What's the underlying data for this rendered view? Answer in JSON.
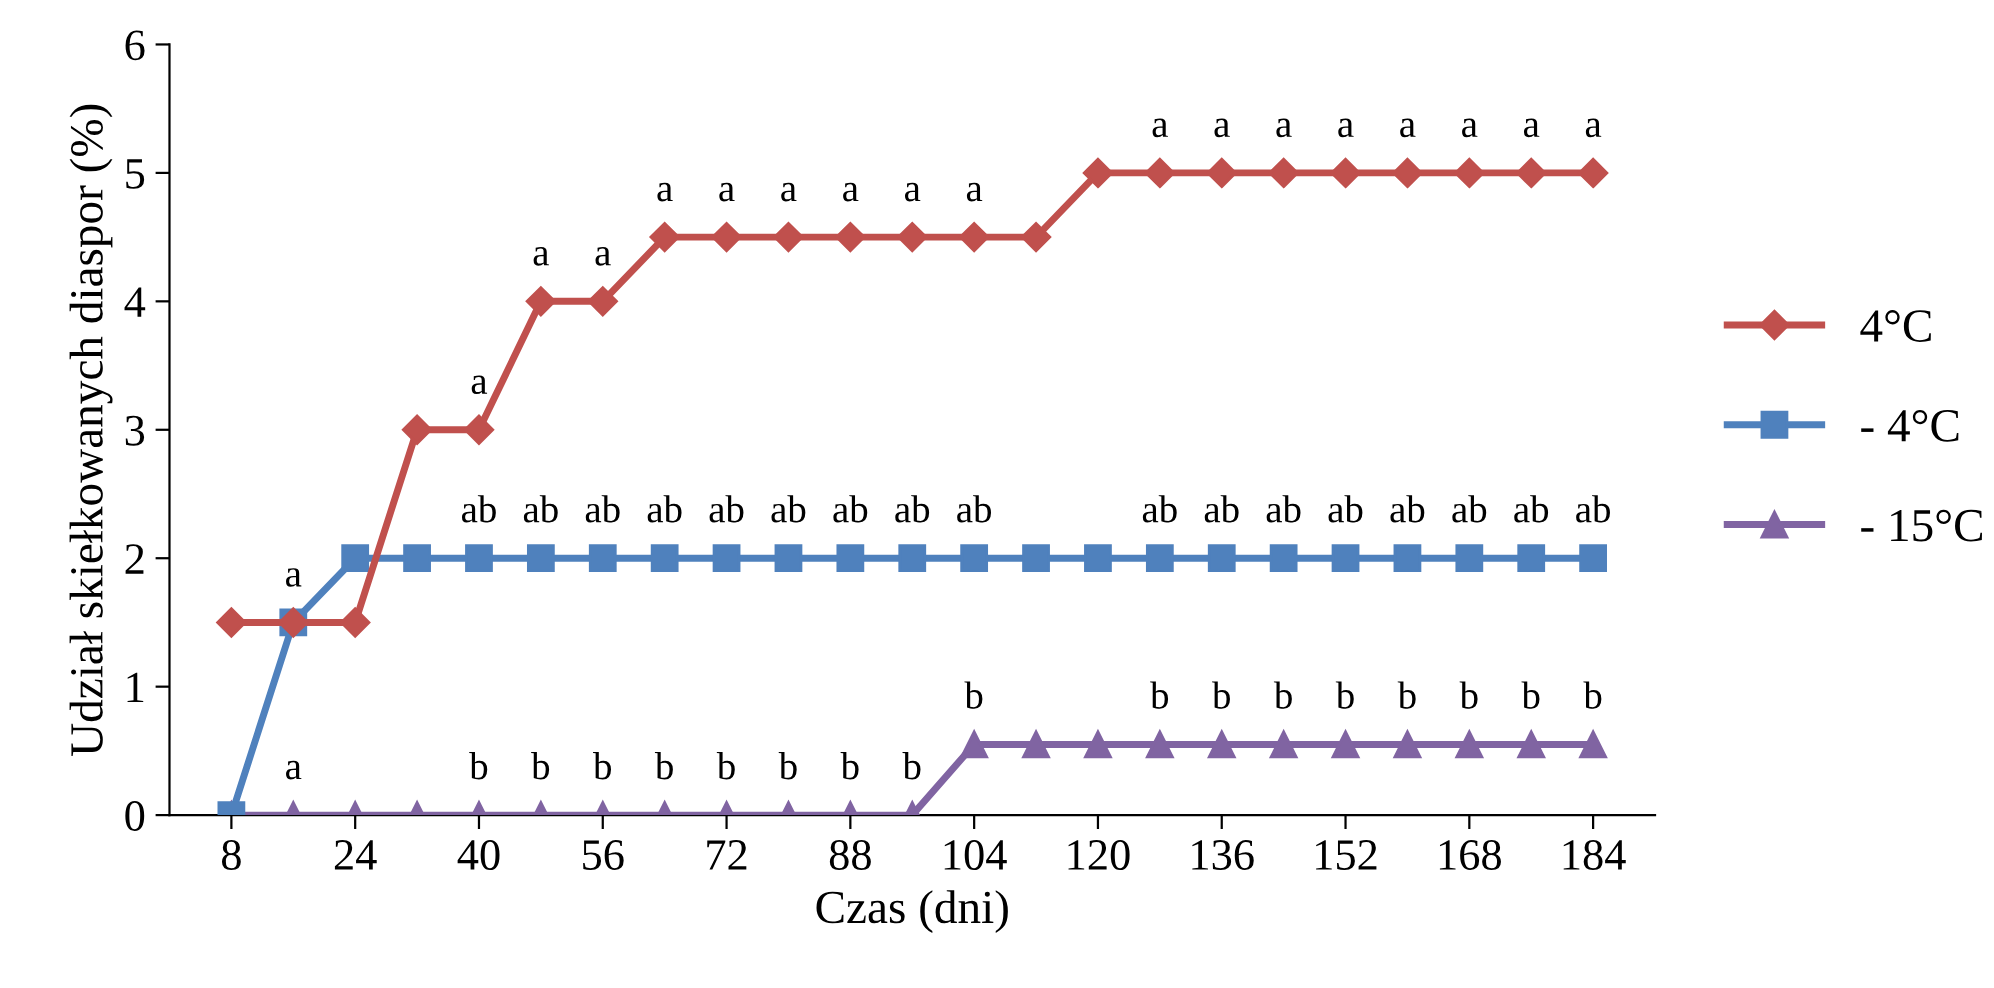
{
  "chart_data": {
    "type": "line",
    "xlabel": "Czas (dni)",
    "ylabel": "Udział skiełkowanych diaspor (%)",
    "x": [
      8,
      16,
      24,
      32,
      40,
      48,
      56,
      64,
      72,
      80,
      88,
      96,
      104,
      112,
      120,
      128,
      136,
      144,
      152,
      160,
      168,
      176,
      184
    ],
    "series": [
      {
        "name": "4°C",
        "color": "#c0504d",
        "marker": "diamond",
        "values": [
          1.5,
          1.5,
          1.5,
          3,
          3,
          4,
          4,
          4.5,
          4.5,
          4.5,
          4.5,
          4.5,
          4.5,
          4.5,
          5,
          5,
          5,
          5,
          5,
          5,
          5,
          5,
          5
        ]
      },
      {
        "name": "- 4°C",
        "color": "#4f81bd",
        "marker": "square",
        "values": [
          0,
          1.5,
          2,
          2,
          2,
          2,
          2,
          2,
          2,
          2,
          2,
          2,
          2,
          2,
          2,
          2,
          2,
          2,
          2,
          2,
          2,
          2,
          2
        ]
      },
      {
        "name": "- 15°C",
        "color": "#8064a2",
        "marker": "triangle",
        "values": [
          0,
          0,
          0,
          0,
          0,
          0,
          0,
          0,
          0,
          0,
          0,
          0,
          0.55,
          0.55,
          0.55,
          0.55,
          0.55,
          0.55,
          0.55,
          0.55,
          0.55,
          0.55,
          0.55
        ]
      }
    ],
    "xlim": [
      0,
      192
    ],
    "xticks": [
      8,
      24,
      40,
      56,
      72,
      88,
      104,
      120,
      136,
      152,
      168,
      184
    ],
    "ylim": [
      0,
      6
    ],
    "yticks": [
      0,
      1,
      2,
      3,
      4,
      5,
      6
    ],
    "grid": false,
    "legend": "right",
    "annotations": [
      {
        "text": "a",
        "x": 16,
        "y": 1.5
      },
      {
        "text": "a",
        "x": 40,
        "y": 3
      },
      {
        "text": "a",
        "x": 48,
        "y": 4
      },
      {
        "text": "a",
        "x": 56,
        "y": 4
      },
      {
        "text": "a",
        "x": 64,
        "y": 4.5
      },
      {
        "text": "a",
        "x": 72,
        "y": 4.5
      },
      {
        "text": "a",
        "x": 80,
        "y": 4.5
      },
      {
        "text": "a",
        "x": 88,
        "y": 4.5
      },
      {
        "text": "a",
        "x": 96,
        "y": 4.5
      },
      {
        "text": "a",
        "x": 104,
        "y": 4.5
      },
      {
        "text": "a",
        "x": 128,
        "y": 5
      },
      {
        "text": "a",
        "x": 136,
        "y": 5
      },
      {
        "text": "a",
        "x": 144,
        "y": 5
      },
      {
        "text": "a",
        "x": 152,
        "y": 5
      },
      {
        "text": "a",
        "x": 160,
        "y": 5
      },
      {
        "text": "a",
        "x": 168,
        "y": 5
      },
      {
        "text": "a",
        "x": 176,
        "y": 5
      },
      {
        "text": "a",
        "x": 184,
        "y": 5
      },
      {
        "text": "ab",
        "x": 40,
        "y": 2
      },
      {
        "text": "ab",
        "x": 48,
        "y": 2
      },
      {
        "text": "ab",
        "x": 56,
        "y": 2
      },
      {
        "text": "ab",
        "x": 64,
        "y": 2
      },
      {
        "text": "ab",
        "x": 72,
        "y": 2
      },
      {
        "text": "ab",
        "x": 80,
        "y": 2
      },
      {
        "text": "ab",
        "x": 88,
        "y": 2
      },
      {
        "text": "ab",
        "x": 96,
        "y": 2
      },
      {
        "text": "ab",
        "x": 104,
        "y": 2
      },
      {
        "text": "ab",
        "x": 128,
        "y": 2
      },
      {
        "text": "ab",
        "x": 136,
        "y": 2
      },
      {
        "text": "ab",
        "x": 144,
        "y": 2
      },
      {
        "text": "ab",
        "x": 152,
        "y": 2
      },
      {
        "text": "ab",
        "x": 160,
        "y": 2
      },
      {
        "text": "ab",
        "x": 168,
        "y": 2
      },
      {
        "text": "ab",
        "x": 176,
        "y": 2
      },
      {
        "text": "ab",
        "x": 184,
        "y": 2
      },
      {
        "text": "a",
        "x": 16,
        "y": 0
      },
      {
        "text": "b",
        "x": 40,
        "y": 0
      },
      {
        "text": "b",
        "x": 48,
        "y": 0
      },
      {
        "text": "b",
        "x": 56,
        "y": 0
      },
      {
        "text": "b",
        "x": 64,
        "y": 0
      },
      {
        "text": "b",
        "x": 72,
        "y": 0
      },
      {
        "text": "b",
        "x": 80,
        "y": 0
      },
      {
        "text": "b",
        "x": 88,
        "y": 0
      },
      {
        "text": "b",
        "x": 96,
        "y": 0
      },
      {
        "text": "b",
        "x": 104,
        "y": 0.55
      },
      {
        "text": "b",
        "x": 128,
        "y": 0.55
      },
      {
        "text": "b",
        "x": 136,
        "y": 0.55
      },
      {
        "text": "b",
        "x": 144,
        "y": 0.55
      },
      {
        "text": "b",
        "x": 152,
        "y": 0.55
      },
      {
        "text": "b",
        "x": 160,
        "y": 0.55
      },
      {
        "text": "b",
        "x": 168,
        "y": 0.55
      },
      {
        "text": "b",
        "x": 176,
        "y": 0.55
      },
      {
        "text": "b",
        "x": 184,
        "y": 0.55
      }
    ]
  }
}
